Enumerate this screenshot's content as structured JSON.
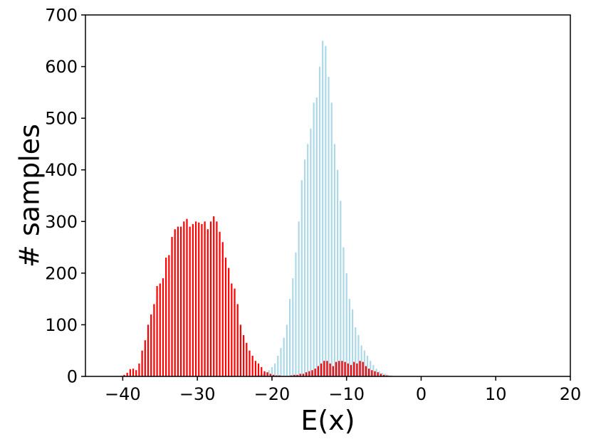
{
  "chart_data": {
    "type": "bar",
    "title": "",
    "xlabel": "E(x)",
    "ylabel": "# samples",
    "xlim": [
      -45,
      20
    ],
    "ylim": [
      0,
      700
    ],
    "xticks": [
      -40,
      -30,
      -20,
      -10,
      0,
      10,
      20
    ],
    "xtick_labels": [
      "−40",
      "−30",
      "−20",
      "−10",
      "0",
      "10",
      "20"
    ],
    "yticks": [
      0,
      100,
      200,
      300,
      400,
      500,
      600,
      700
    ],
    "ytick_labels": [
      "0",
      "100",
      "200",
      "300",
      "400",
      "500",
      "600",
      "700"
    ],
    "grid": false,
    "series": [
      {
        "color": "#add8e6",
        "x": [
          -22.0,
          -21.6,
          -21.2,
          -20.8,
          -20.4,
          -20.0,
          -19.6,
          -19.2,
          -18.8,
          -18.4,
          -18.0,
          -17.6,
          -17.2,
          -16.8,
          -16.4,
          -16.0,
          -15.6,
          -15.2,
          -14.8,
          -14.4,
          -14.0,
          -13.6,
          -13.2,
          -12.8,
          -12.4,
          -12.0,
          -11.6,
          -11.2,
          -10.8,
          -10.4,
          -10.0,
          -9.6,
          -9.2,
          -8.8,
          -8.4,
          -8.0,
          -7.6,
          -7.2,
          -6.8,
          -6.4,
          -6.0,
          -5.6,
          -5.2,
          -4.8,
          -4.4,
          -4.0
        ],
        "values": [
          2,
          3,
          5,
          8,
          12,
          18,
          25,
          40,
          55,
          75,
          100,
          150,
          190,
          240,
          300,
          380,
          420,
          450,
          480,
          530,
          540,
          600,
          650,
          640,
          580,
          530,
          450,
          400,
          340,
          250,
          200,
          150,
          130,
          95,
          80,
          60,
          50,
          40,
          30,
          22,
          15,
          10,
          7,
          5,
          3,
          2
        ]
      },
      {
        "color": "#ff0000",
        "x": [
          -40.2,
          -39.8,
          -39.4,
          -39.0,
          -38.6,
          -38.2,
          -37.8,
          -37.4,
          -37.0,
          -36.6,
          -36.2,
          -35.8,
          -35.4,
          -35.0,
          -34.6,
          -34.2,
          -33.8,
          -33.4,
          -33.0,
          -32.6,
          -32.2,
          -31.8,
          -31.4,
          -31.0,
          -30.6,
          -30.2,
          -29.8,
          -29.4,
          -29.0,
          -28.6,
          -28.2,
          -27.8,
          -27.4,
          -27.0,
          -26.6,
          -26.2,
          -25.8,
          -25.4,
          -25.0,
          -24.6,
          -24.2,
          -23.8,
          -23.4,
          -23.0,
          -22.6,
          -22.2,
          -21.8,
          -21.4,
          -21.0,
          -20.6,
          -20.2,
          -19.8,
          -19.4,
          -19.0,
          -18.6,
          -18.2,
          -17.8,
          -17.4,
          -17.0,
          -16.6,
          -16.2,
          -15.8,
          -15.4,
          -15.0,
          -14.6,
          -14.2,
          -13.8,
          -13.4,
          -13.0,
          -12.6,
          -12.2,
          -11.8,
          -11.4,
          -11.0,
          -10.6,
          -10.2,
          -9.8,
          -9.4,
          -9.0,
          -8.6,
          -8.2,
          -7.8,
          -7.4,
          -7.0,
          -6.6,
          -6.2,
          -5.8,
          -5.4,
          -5.0,
          -4.6,
          -4.2
        ],
        "values": [
          1,
          3,
          7,
          14,
          15,
          12,
          25,
          50,
          70,
          100,
          120,
          140,
          175,
          180,
          190,
          230,
          235,
          270,
          285,
          290,
          290,
          300,
          305,
          290,
          295,
          300,
          298,
          295,
          300,
          285,
          300,
          310,
          300,
          280,
          260,
          230,
          210,
          180,
          170,
          140,
          100,
          80,
          65,
          50,
          40,
          30,
          25,
          18,
          10,
          8,
          5,
          3,
          2,
          2,
          1,
          1,
          1,
          2,
          3,
          3,
          5,
          5,
          8,
          10,
          12,
          15,
          20,
          25,
          30,
          30,
          25,
          20,
          28,
          30,
          30,
          28,
          25,
          22,
          28,
          25,
          30,
          28,
          20,
          15,
          12,
          10,
          8,
          5,
          3,
          2,
          1
        ]
      }
    ]
  }
}
